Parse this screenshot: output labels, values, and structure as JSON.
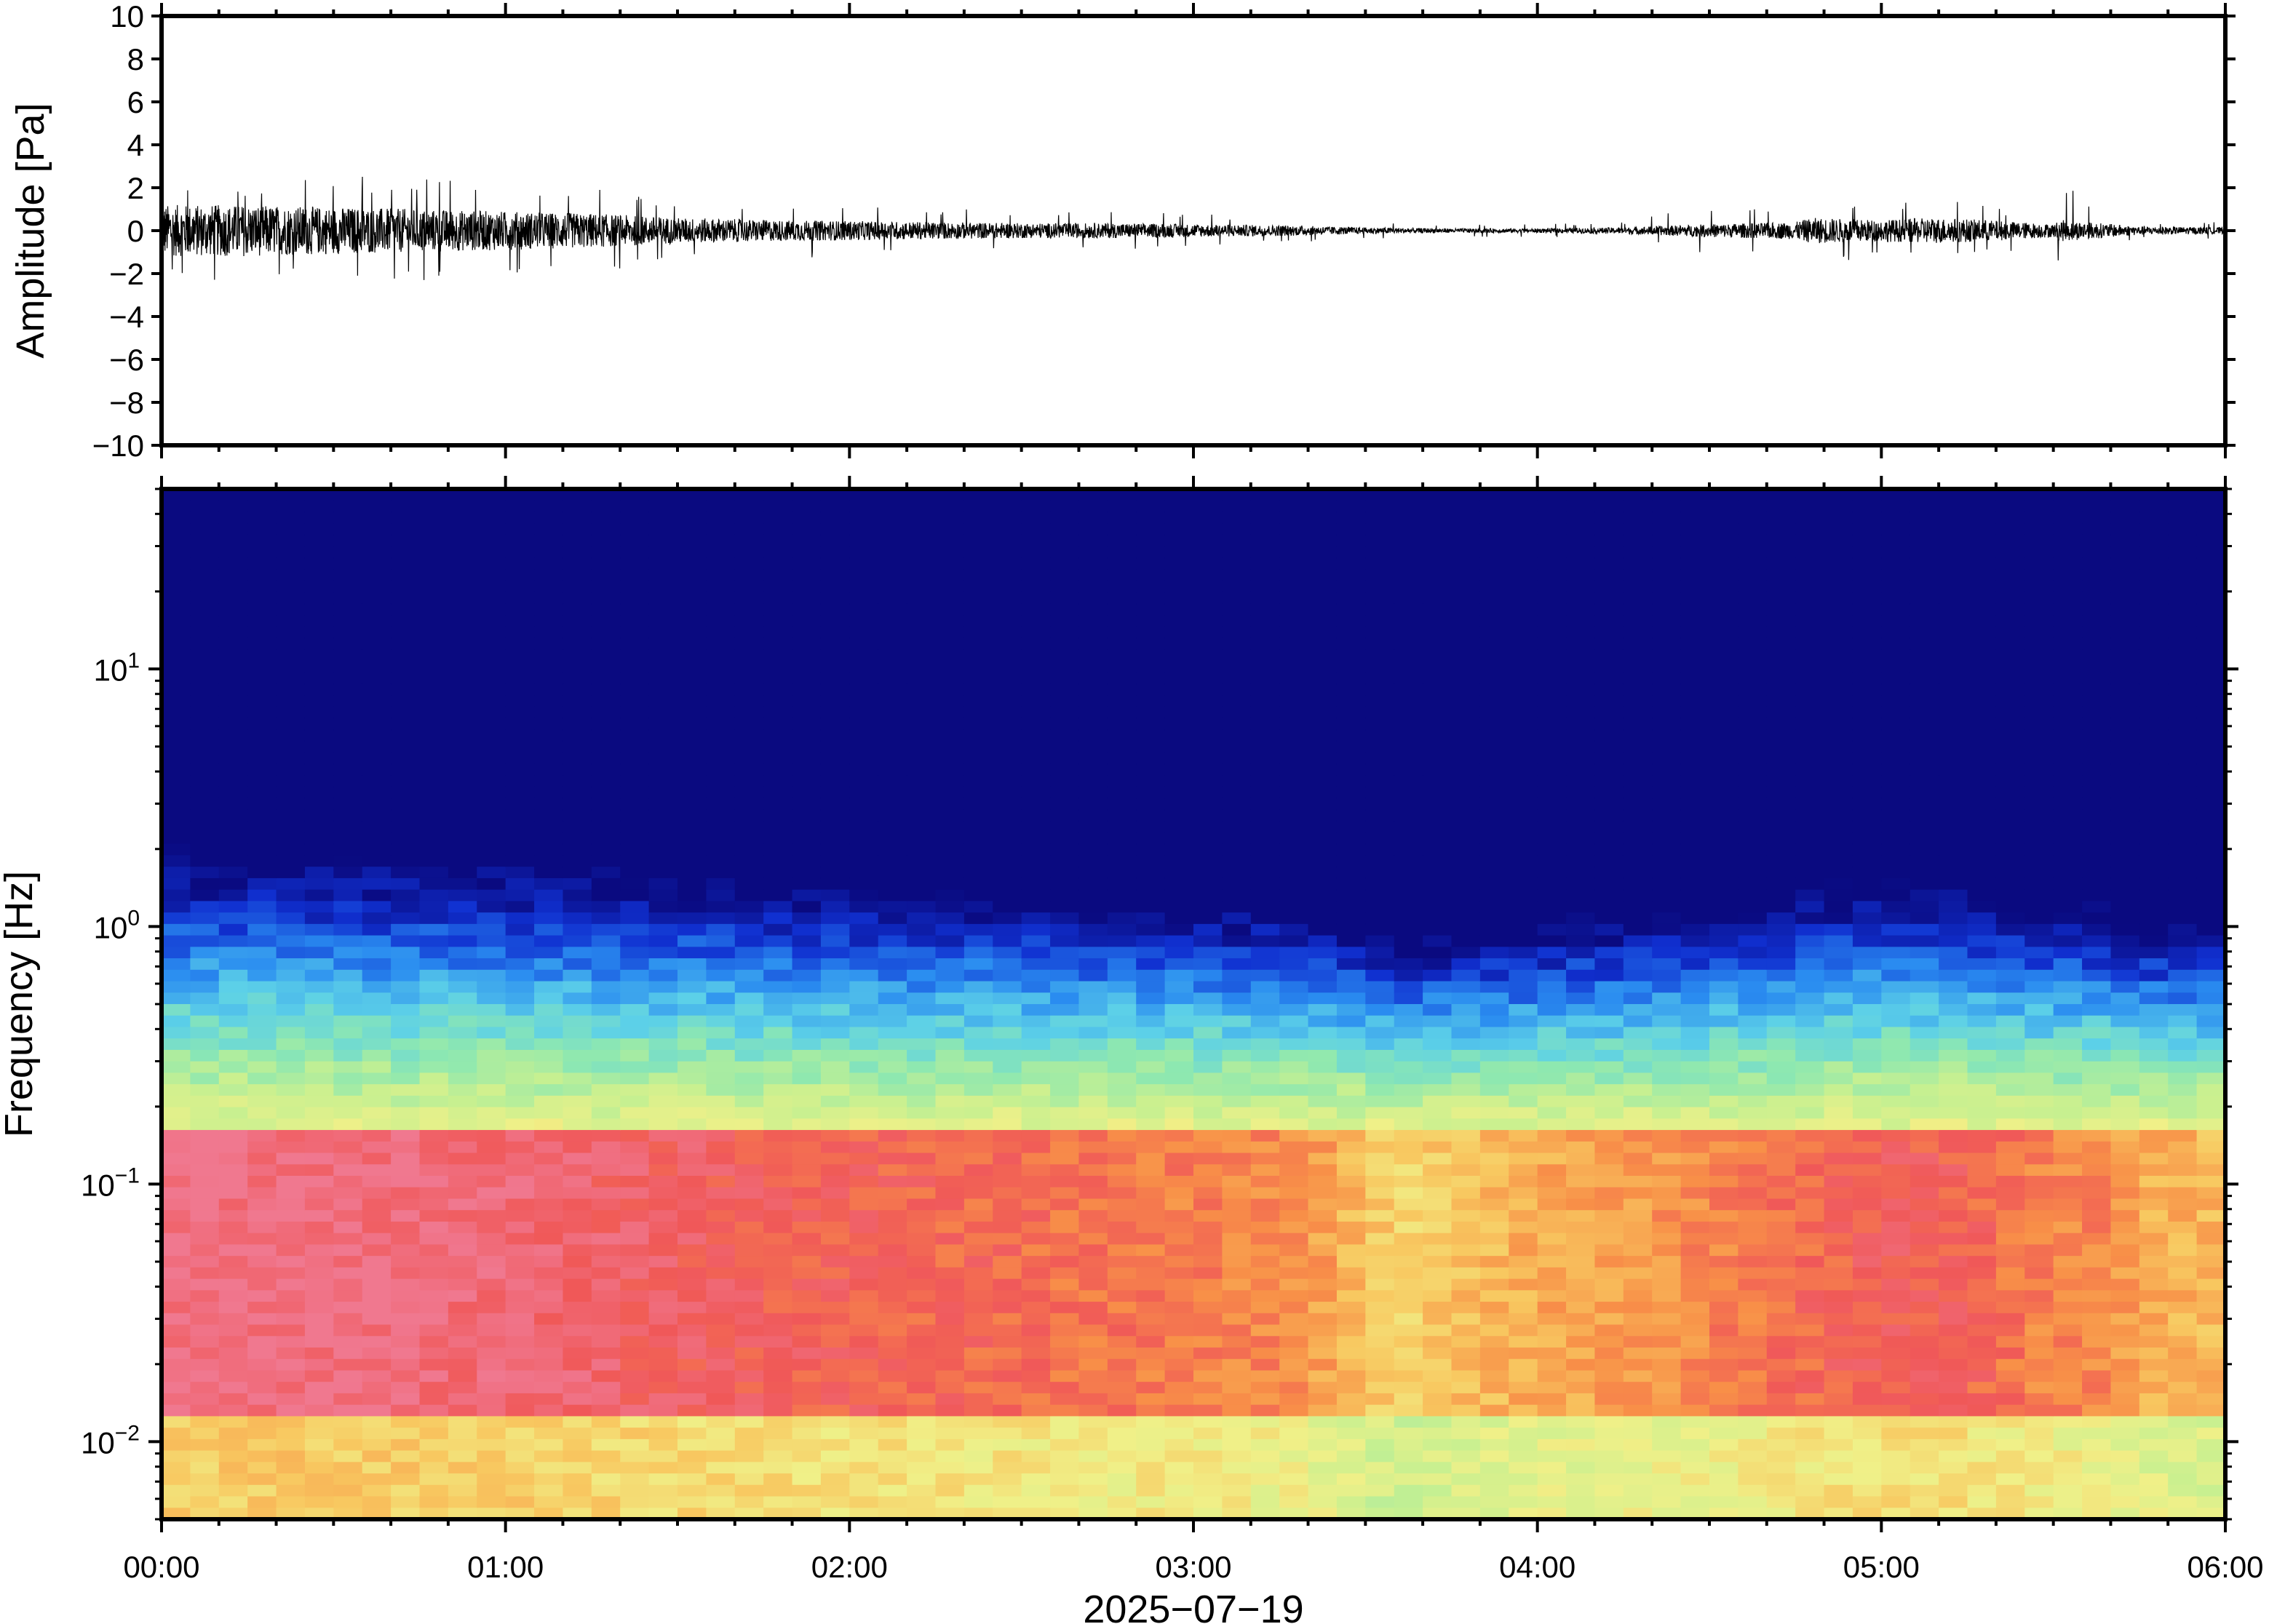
{
  "chart_data": [
    {
      "type": "line",
      "panel": "waveform",
      "title": "",
      "xlabel": "",
      "ylabel": "Amplitude [Pa]",
      "ylim": [
        -10,
        10
      ],
      "yticks": [
        10,
        8,
        6,
        4,
        2,
        0,
        -2,
        -4,
        -6,
        -8,
        -10
      ],
      "ytick_labels": [
        "10",
        "8",
        "6",
        "4",
        "2",
        "0",
        "−2",
        "−4",
        "−6",
        "−8",
        "−10"
      ],
      "xlim_hours": [
        0,
        6
      ],
      "series": [
        {
          "envelope": {
            "hours": [
              0.0,
              0.25,
              0.5,
              0.75,
              1.0,
              1.25,
              1.5,
              1.75,
              2.0,
              2.25,
              2.5,
              2.75,
              3.0,
              3.25,
              3.5,
              3.75,
              4.0,
              4.25,
              4.5,
              4.75,
              4.8,
              5.0,
              5.15,
              5.3,
              5.5,
              5.52,
              5.6,
              5.75,
              6.0
            ],
            "typical_amplitude": [
              1.2,
              1.2,
              1.1,
              1.0,
              0.9,
              0.8,
              0.6,
              0.5,
              0.45,
              0.4,
              0.35,
              0.35,
              0.3,
              0.25,
              0.15,
              0.1,
              0.1,
              0.15,
              0.3,
              0.4,
              0.6,
              0.5,
              0.6,
              0.5,
              0.3,
              0.5,
              0.4,
              0.2,
              0.15
            ],
            "peak_amplitude": [
              2.3,
              2.3,
              2.6,
              2.4,
              2.3,
              2.0,
              1.5,
              1.3,
              1.2,
              1.0,
              1.0,
              0.9,
              0.8,
              0.6,
              0.4,
              0.3,
              0.3,
              0.4,
              1.2,
              0.9,
              1.6,
              1.4,
              1.5,
              1.2,
              0.6,
              2.4,
              1.3,
              0.4,
              0.4
            ]
          }
        }
      ]
    },
    {
      "type": "heatmap",
      "panel": "spectrogram",
      "title": "",
      "xlabel": "2025−07−19",
      "ylabel": "Frequency [Hz]",
      "yscale": "log",
      "ylim": [
        0.005,
        50
      ],
      "yticks": [
        0.01,
        0.1,
        1,
        10
      ],
      "ytick_labels": [
        {
          "base": "10",
          "exp": "−2"
        },
        {
          "base": "10",
          "exp": "−1"
        },
        {
          "base": "10",
          "exp": "0"
        },
        {
          "base": "10",
          "exp": "1"
        }
      ],
      "x": [
        "00:00",
        "01:00",
        "02:00",
        "03:00",
        "04:00",
        "05:00",
        "06:00"
      ],
      "colormap": [
        "#0a0a80",
        "#1030d0",
        "#2a8cf0",
        "#5cd0e8",
        "#8ee8b0",
        "#c8f090",
        "#f0f088",
        "#f8c860",
        "#f89048",
        "#f05858",
        "#f07890"
      ],
      "activity_profile": {
        "hours": [
          0.0,
          0.5,
          1.0,
          1.5,
          2.0,
          2.5,
          3.0,
          3.3,
          3.5,
          3.6,
          3.75,
          4.0,
          4.25,
          4.5,
          4.75,
          5.0,
          5.25,
          5.5,
          5.6,
          5.75,
          6.0
        ],
        "level": [
          0.95,
          0.95,
          0.9,
          0.82,
          0.75,
          0.7,
          0.62,
          0.58,
          0.35,
          0.25,
          0.35,
          0.45,
          0.5,
          0.6,
          0.7,
          0.78,
          0.75,
          0.58,
          0.62,
          0.45,
          0.38
        ]
      }
    }
  ]
}
